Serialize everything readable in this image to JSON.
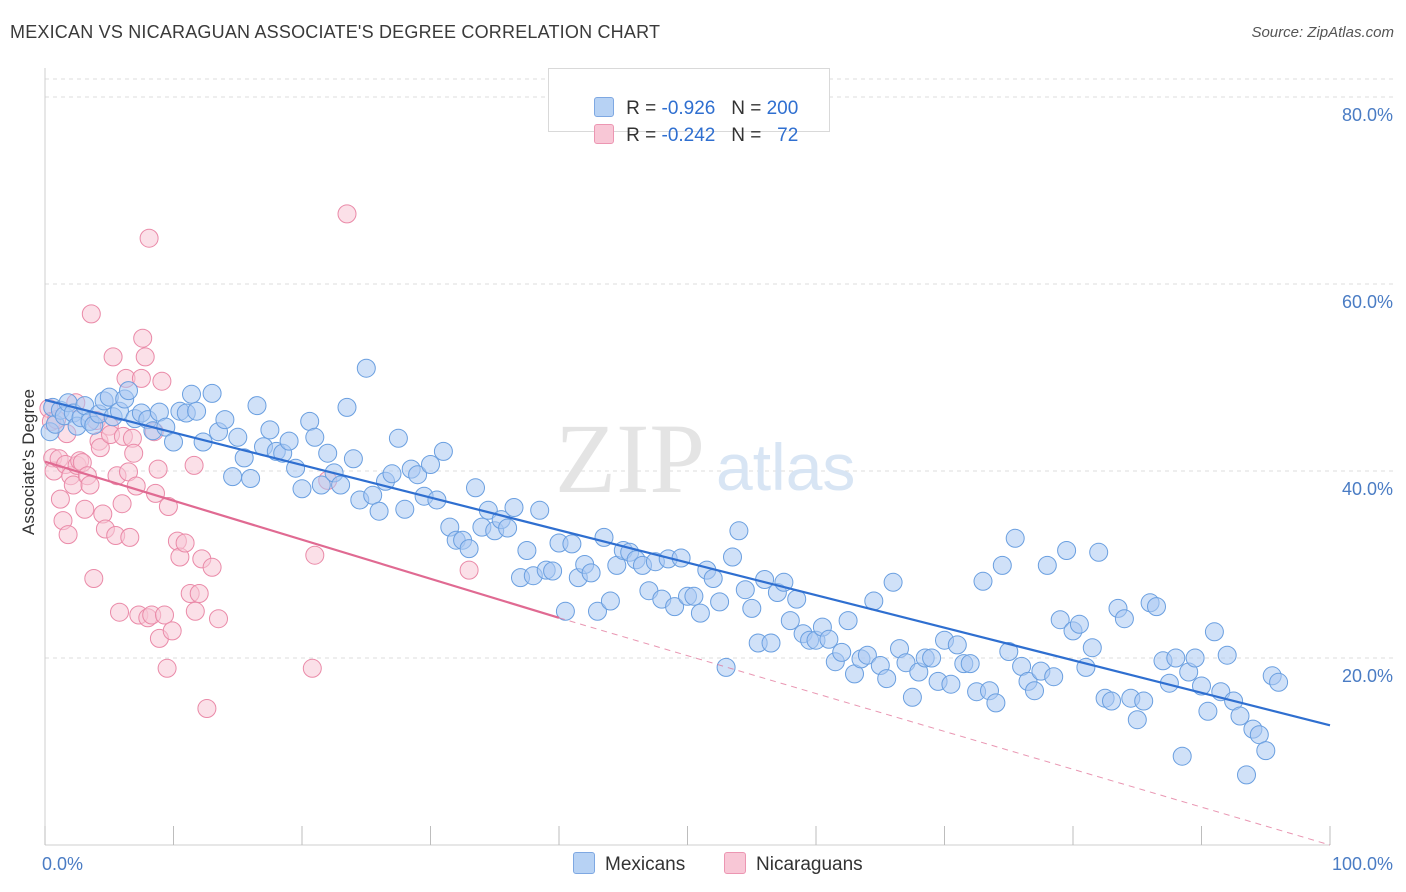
{
  "title": "MEXICAN VS NICARAGUAN ASSOCIATE'S DEGREE CORRELATION CHART",
  "source": "Source: ZipAtlas.com",
  "watermark": {
    "zip": "ZIP",
    "atlas": "atlas"
  },
  "legend": {
    "rows": [
      {
        "r_label": "R = ",
        "r_value": "-0.926",
        "n_label": "N = ",
        "n_value": "200",
        "color": "#9fc2ee"
      },
      {
        "r_label": "R = ",
        "r_value": "-0.242",
        "n_label": "N = ",
        "n_value": "  72",
        "color": "#f4b3c8"
      }
    ]
  },
  "bottom_legend": [
    {
      "label": "Mexicans",
      "color": "#9fc2ee"
    },
    {
      "label": "Nicaraguans",
      "color": "#f4b3c8"
    }
  ],
  "chart_data": {
    "type": "scatter",
    "ylabel": "Associate's Degree",
    "xlabel": "",
    "xlim": [
      0,
      100
    ],
    "ylim": [
      0,
      82
    ],
    "x_tick_labels": [
      "0.0%",
      "100.0%"
    ],
    "y_ticks": [
      {
        "value": 20,
        "label": "20.0%"
      },
      {
        "value": 40,
        "label": "40.0%"
      },
      {
        "value": 60,
        "label": "60.0%"
      },
      {
        "value": 80,
        "label": "80.0%"
      }
    ],
    "grid": true,
    "colors": {
      "mexicans": "#6a9fe0",
      "mexicans_fill": "#a9c9f2",
      "mexicans_line": "#2f6fd0",
      "nicaraguans": "#ea8aa8",
      "nicaraguans_fill": "#f7c6d5",
      "nicaraguans_line": "#e06a92"
    },
    "series": [
      {
        "name": "Mexicans",
        "trend": {
          "x0": 0,
          "y0": 47.6,
          "x1": 100,
          "y1": 12.8
        },
        "points": [
          [
            0.4,
            44.2
          ],
          [
            0.6,
            46.8
          ],
          [
            0.8,
            45.0
          ],
          [
            1.2,
            46.5
          ],
          [
            1.5,
            45.9
          ],
          [
            1.8,
            47.3
          ],
          [
            2.2,
            46.2
          ],
          [
            2.5,
            44.8
          ],
          [
            2.8,
            45.7
          ],
          [
            3.1,
            47.0
          ],
          [
            3.5,
            45.3
          ],
          [
            3.8,
            44.9
          ],
          [
            4.2,
            46.1
          ],
          [
            4.6,
            47.5
          ],
          [
            5.0,
            47.9
          ],
          [
            5.3,
            45.8
          ],
          [
            5.8,
            46.4
          ],
          [
            6.2,
            47.7
          ],
          [
            6.5,
            48.6
          ],
          [
            7.0,
            45.6
          ],
          [
            7.5,
            46.2
          ],
          [
            8.0,
            45.5
          ],
          [
            8.4,
            44.3
          ],
          [
            8.9,
            46.3
          ],
          [
            9.4,
            44.7
          ],
          [
            10.0,
            43.1
          ],
          [
            10.5,
            46.4
          ],
          [
            11.0,
            46.2
          ],
          [
            11.4,
            48.2
          ],
          [
            11.8,
            46.4
          ],
          [
            12.3,
            43.1
          ],
          [
            13.0,
            48.3
          ],
          [
            13.5,
            44.2
          ],
          [
            14.0,
            45.5
          ],
          [
            14.6,
            39.4
          ],
          [
            15.0,
            43.6
          ],
          [
            15.5,
            41.4
          ],
          [
            16.0,
            39.2
          ],
          [
            16.5,
            47.0
          ],
          [
            17.0,
            42.6
          ],
          [
            17.5,
            44.4
          ],
          [
            18.0,
            42.1
          ],
          [
            18.5,
            41.9
          ],
          [
            19.0,
            43.2
          ],
          [
            19.5,
            40.3
          ],
          [
            20.0,
            38.1
          ],
          [
            20.6,
            45.3
          ],
          [
            21.0,
            43.6
          ],
          [
            21.5,
            38.5
          ],
          [
            22.0,
            41.9
          ],
          [
            22.5,
            39.8
          ],
          [
            23.0,
            38.5
          ],
          [
            23.5,
            46.8
          ],
          [
            24.0,
            41.3
          ],
          [
            24.5,
            36.9
          ],
          [
            25.0,
            51.0
          ],
          [
            25.5,
            37.4
          ],
          [
            26.0,
            35.7
          ],
          [
            26.5,
            38.9
          ],
          [
            27.0,
            39.7
          ],
          [
            27.5,
            43.5
          ],
          [
            28.0,
            35.9
          ],
          [
            28.5,
            40.2
          ],
          [
            29.0,
            39.6
          ],
          [
            29.5,
            37.3
          ],
          [
            30.0,
            40.7
          ],
          [
            30.5,
            36.9
          ],
          [
            31.0,
            42.1
          ],
          [
            31.5,
            34.0
          ],
          [
            32.0,
            32.6
          ],
          [
            32.5,
            32.6
          ],
          [
            33.0,
            31.7
          ],
          [
            33.5,
            38.2
          ],
          [
            34.0,
            34.0
          ],
          [
            34.5,
            35.8
          ],
          [
            35.0,
            33.6
          ],
          [
            35.5,
            34.8
          ],
          [
            36.0,
            33.9
          ],
          [
            36.5,
            36.1
          ],
          [
            37.0,
            28.6
          ],
          [
            37.5,
            31.5
          ],
          [
            38.0,
            28.8
          ],
          [
            38.5,
            35.8
          ],
          [
            39.0,
            29.4
          ],
          [
            39.5,
            29.3
          ],
          [
            40.0,
            32.3
          ],
          [
            40.5,
            25.0
          ],
          [
            41.0,
            32.2
          ],
          [
            41.5,
            28.6
          ],
          [
            42.0,
            30.0
          ],
          [
            42.5,
            29.1
          ],
          [
            43.0,
            25.0
          ],
          [
            43.5,
            32.9
          ],
          [
            44.0,
            26.1
          ],
          [
            44.5,
            29.9
          ],
          [
            45.0,
            31.5
          ],
          [
            45.5,
            31.3
          ],
          [
            46.0,
            30.5
          ],
          [
            46.5,
            29.9
          ],
          [
            47.0,
            27.2
          ],
          [
            47.5,
            30.3
          ],
          [
            48.0,
            26.3
          ],
          [
            48.5,
            30.6
          ],
          [
            49.0,
            25.5
          ],
          [
            49.5,
            30.7
          ],
          [
            50.0,
            26.6
          ],
          [
            50.5,
            26.6
          ],
          [
            51.0,
            24.8
          ],
          [
            51.5,
            29.4
          ],
          [
            52.0,
            28.5
          ],
          [
            52.5,
            26.0
          ],
          [
            53.0,
            19.0
          ],
          [
            53.5,
            30.8
          ],
          [
            54.0,
            33.6
          ],
          [
            54.5,
            27.3
          ],
          [
            55.0,
            25.3
          ],
          [
            55.5,
            21.6
          ],
          [
            56.0,
            28.4
          ],
          [
            56.5,
            21.6
          ],
          [
            57.0,
            27.0
          ],
          [
            57.5,
            28.1
          ],
          [
            58.0,
            24.0
          ],
          [
            58.5,
            26.3
          ],
          [
            59.0,
            22.6
          ],
          [
            59.5,
            21.9
          ],
          [
            60.0,
            21.9
          ],
          [
            60.5,
            23.3
          ],
          [
            61.0,
            22.0
          ],
          [
            61.5,
            19.6
          ],
          [
            62.0,
            20.6
          ],
          [
            62.5,
            24.0
          ],
          [
            63.0,
            18.3
          ],
          [
            63.5,
            19.9
          ],
          [
            64.0,
            20.3
          ],
          [
            64.5,
            26.1
          ],
          [
            65.0,
            19.2
          ],
          [
            65.5,
            17.8
          ],
          [
            66.0,
            28.1
          ],
          [
            66.5,
            21.0
          ],
          [
            67.0,
            19.5
          ],
          [
            67.5,
            15.8
          ],
          [
            68.0,
            18.5
          ],
          [
            68.5,
            20.0
          ],
          [
            69.0,
            20.0
          ],
          [
            69.5,
            17.5
          ],
          [
            70.0,
            21.9
          ],
          [
            70.5,
            17.2
          ],
          [
            71.0,
            21.4
          ],
          [
            71.5,
            19.4
          ],
          [
            72.0,
            19.4
          ],
          [
            72.5,
            16.4
          ],
          [
            73.0,
            28.2
          ],
          [
            73.5,
            16.5
          ],
          [
            74.0,
            15.2
          ],
          [
            74.5,
            29.9
          ],
          [
            75.0,
            20.7
          ],
          [
            75.5,
            32.8
          ],
          [
            76.0,
            19.1
          ],
          [
            76.5,
            17.5
          ],
          [
            77.0,
            16.5
          ],
          [
            77.5,
            18.6
          ],
          [
            78.0,
            29.9
          ],
          [
            78.5,
            18.0
          ],
          [
            79.0,
            24.1
          ],
          [
            79.5,
            31.5
          ],
          [
            80.0,
            22.9
          ],
          [
            80.5,
            23.6
          ],
          [
            81.0,
            19.0
          ],
          [
            81.5,
            21.1
          ],
          [
            82.0,
            31.3
          ],
          [
            82.5,
            15.7
          ],
          [
            83.0,
            15.4
          ],
          [
            83.5,
            25.3
          ],
          [
            84.0,
            24.2
          ],
          [
            84.5,
            15.7
          ],
          [
            85.0,
            13.4
          ],
          [
            85.5,
            15.4
          ],
          [
            86.0,
            25.9
          ],
          [
            86.5,
            25.5
          ],
          [
            87.0,
            19.7
          ],
          [
            87.5,
            17.3
          ],
          [
            88.0,
            20.0
          ],
          [
            88.5,
            9.5
          ],
          [
            89.0,
            18.5
          ],
          [
            89.5,
            20.0
          ],
          [
            90.0,
            17.0
          ],
          [
            90.5,
            14.3
          ],
          [
            91.0,
            22.8
          ],
          [
            91.5,
            16.4
          ],
          [
            92.0,
            20.3
          ],
          [
            92.5,
            15.4
          ],
          [
            93.0,
            13.8
          ],
          [
            93.5,
            7.5
          ],
          [
            94.0,
            12.4
          ],
          [
            94.5,
            11.8
          ],
          [
            95.0,
            10.1
          ],
          [
            95.5,
            18.1
          ],
          [
            96.0,
            17.4
          ]
        ]
      },
      {
        "name": "Nicaraguans",
        "trend": {
          "x0": 0,
          "y0": 41.0,
          "x1": 40,
          "y1": 24.3,
          "dash_to_x": 100,
          "dash_to_y": 0
        },
        "points": [
          [
            0.3,
            46.7
          ],
          [
            0.5,
            45.3
          ],
          [
            0.6,
            41.4
          ],
          [
            0.7,
            40.0
          ],
          [
            0.9,
            45.5
          ],
          [
            1.1,
            41.3
          ],
          [
            1.2,
            37.0
          ],
          [
            1.4,
            34.7
          ],
          [
            1.6,
            40.7
          ],
          [
            1.7,
            44.0
          ],
          [
            1.8,
            33.2
          ],
          [
            2.0,
            39.5
          ],
          [
            2.2,
            38.5
          ],
          [
            2.4,
            47.3
          ],
          [
            2.5,
            40.6
          ],
          [
            2.7,
            41.1
          ],
          [
            2.9,
            40.9
          ],
          [
            3.1,
            35.9
          ],
          [
            3.3,
            39.5
          ],
          [
            3.5,
            38.5
          ],
          [
            3.6,
            56.8
          ],
          [
            3.8,
            28.5
          ],
          [
            4.0,
            45.4
          ],
          [
            4.2,
            43.2
          ],
          [
            4.3,
            42.5
          ],
          [
            4.5,
            35.4
          ],
          [
            4.7,
            33.8
          ],
          [
            5.0,
            44.8
          ],
          [
            5.1,
            43.9
          ],
          [
            5.3,
            52.2
          ],
          [
            5.5,
            33.1
          ],
          [
            5.6,
            39.5
          ],
          [
            5.8,
            24.9
          ],
          [
            6.0,
            36.5
          ],
          [
            6.1,
            43.7
          ],
          [
            6.3,
            49.9
          ],
          [
            6.5,
            39.9
          ],
          [
            6.6,
            32.9
          ],
          [
            6.8,
            43.5
          ],
          [
            6.9,
            41.9
          ],
          [
            7.1,
            38.4
          ],
          [
            7.3,
            24.6
          ],
          [
            7.5,
            49.9
          ],
          [
            7.6,
            54.2
          ],
          [
            7.8,
            52.2
          ],
          [
            8.0,
            24.3
          ],
          [
            8.1,
            64.9
          ],
          [
            8.3,
            24.6
          ],
          [
            8.5,
            44.2
          ],
          [
            8.6,
            37.6
          ],
          [
            8.8,
            40.2
          ],
          [
            8.9,
            22.1
          ],
          [
            9.1,
            49.6
          ],
          [
            9.3,
            24.6
          ],
          [
            9.5,
            18.9
          ],
          [
            9.6,
            36.2
          ],
          [
            9.9,
            22.9
          ],
          [
            10.3,
            32.5
          ],
          [
            10.5,
            30.8
          ],
          [
            10.9,
            32.3
          ],
          [
            11.3,
            26.9
          ],
          [
            11.6,
            40.6
          ],
          [
            11.7,
            25.0
          ],
          [
            12.0,
            26.9
          ],
          [
            12.2,
            30.6
          ],
          [
            12.6,
            14.6
          ],
          [
            13.0,
            29.7
          ],
          [
            13.5,
            24.2
          ],
          [
            20.8,
            18.9
          ],
          [
            21.0,
            31.0
          ],
          [
            22.0,
            39.0
          ],
          [
            23.5,
            67.5
          ],
          [
            33.0,
            29.4
          ]
        ]
      }
    ]
  }
}
